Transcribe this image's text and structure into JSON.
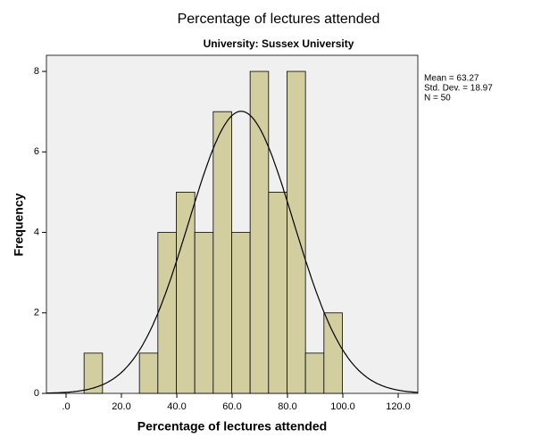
{
  "chart_data": {
    "type": "histogram",
    "title": "Percentage of lectures attended",
    "subtitle": "University: Sussex University",
    "x_label": "Percentage of lectures attended",
    "y_label": "Frequency",
    "bins": [
      6.5,
      13.17,
      19.83,
      26.5,
      33.17,
      39.83,
      46.5,
      53.17,
      59.83,
      66.5,
      73.17,
      79.83,
      86.5,
      93.17,
      99.83
    ],
    "counts": [
      1,
      0,
      0,
      1,
      4,
      5,
      4,
      7,
      4,
      8,
      5,
      8,
      1,
      2
    ],
    "color": "#d3cea0",
    "background": "#f0f0f0",
    "xlim": [
      -7.1,
      127.1
    ],
    "ylim": [
      0,
      8.4
    ],
    "xticks": [
      {
        "value": 0,
        "label": ".0"
      },
      {
        "value": 20,
        "label": "20.0"
      },
      {
        "value": 40,
        "label": "40.0"
      },
      {
        "value": 60,
        "label": "60.0"
      },
      {
        "value": 80,
        "label": "80.0"
      },
      {
        "value": 100,
        "label": "100.0"
      },
      {
        "value": 120,
        "label": "120.0"
      }
    ],
    "yticks": [
      0,
      2,
      4,
      6,
      8
    ],
    "stats": [
      {
        "value": 63.27,
        "label": "Mean = 63.27"
      },
      {
        "value": 18.97,
        "label": "Std. Dev. = 18.97"
      },
      {
        "value": 50,
        "label": "N = 50"
      }
    ],
    "normal_curve": true
  }
}
